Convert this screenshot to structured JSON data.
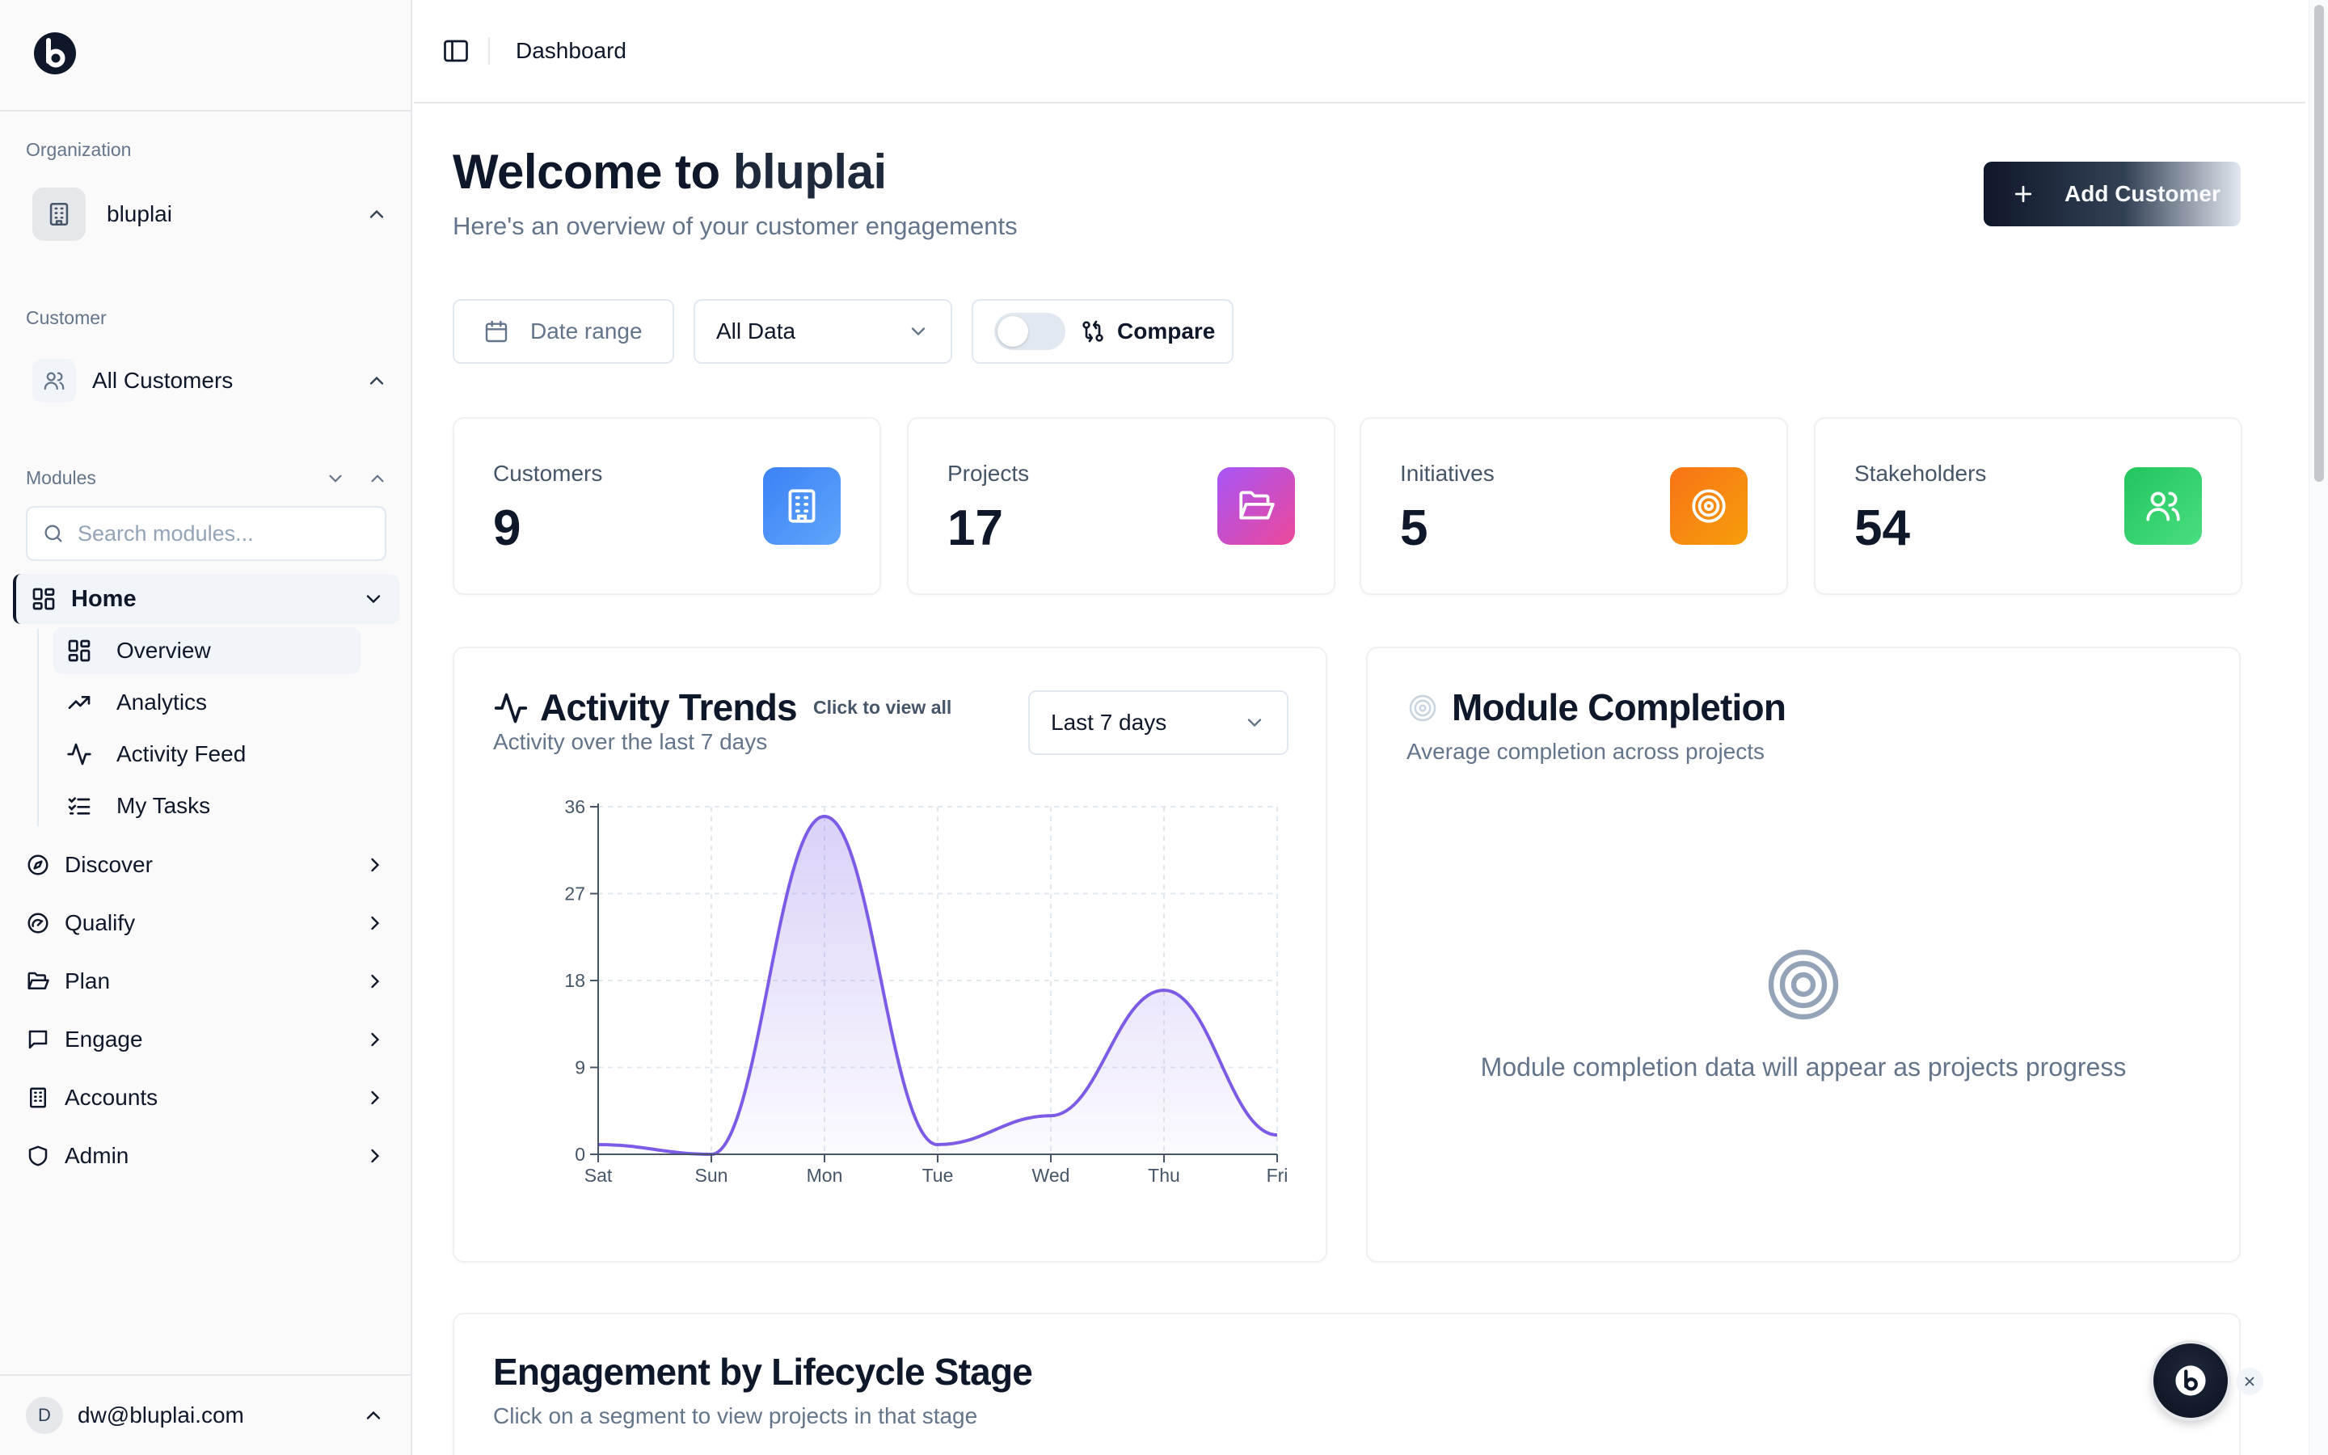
{
  "sidebar": {
    "organization_label": "Organization",
    "organization_name": "bluplai",
    "customer_label": "Customer",
    "customer_name": "All Customers",
    "modules_label": "Modules",
    "search_placeholder": "Search modules...",
    "home_label": "Home",
    "home_subitems": [
      {
        "label": "Overview",
        "icon": "grid-icon",
        "active": true
      },
      {
        "label": "Analytics",
        "icon": "trending-up-icon"
      },
      {
        "label": "Activity Feed",
        "icon": "activity-icon"
      },
      {
        "label": "My Tasks",
        "icon": "list-checks-icon"
      }
    ],
    "nav_items": [
      {
        "label": "Discover",
        "icon": "compass-icon"
      },
      {
        "label": "Qualify",
        "icon": "gauge-icon"
      },
      {
        "label": "Plan",
        "icon": "folder-open-icon"
      },
      {
        "label": "Engage",
        "icon": "message-square-icon"
      },
      {
        "label": "Accounts",
        "icon": "building-icon"
      },
      {
        "label": "Admin",
        "icon": "shield-icon"
      }
    ],
    "user": {
      "initial": "D",
      "email": "dw@bluplai.com"
    }
  },
  "topbar": {
    "breadcrumb": "Dashboard"
  },
  "header": {
    "welcome_prefix": "Welcome to ",
    "brand": "bluplai",
    "subtitle": "Here's an overview of your customer engagements",
    "add_button": "Add Customer"
  },
  "filters": {
    "date_range": "Date range",
    "data_select": "All Data",
    "compare_label": "Compare",
    "compare_on": false
  },
  "stats": [
    {
      "label": "Customers",
      "value": "9",
      "icon": "building-icon",
      "color": "#3b82f6"
    },
    {
      "label": "Projects",
      "value": "17",
      "icon": "folder-open-icon",
      "color": "#a855f7"
    },
    {
      "label": "Initiatives",
      "value": "5",
      "icon": "target-icon",
      "color": "#f97316"
    },
    {
      "label": "Stakeholders",
      "value": "54",
      "icon": "users-icon",
      "color": "#22c55e"
    }
  ],
  "activity": {
    "title": "Activity Trends",
    "link": "Click to view all",
    "subtitle": "Activity over the last 7 days",
    "period": "Last 7 days"
  },
  "chart_data": {
    "type": "area",
    "categories": [
      "Sat",
      "Sun",
      "Mon",
      "Tue",
      "Wed",
      "Thu",
      "Fri"
    ],
    "values": [
      1,
      0,
      35,
      1,
      4,
      17,
      2
    ],
    "ylim": [
      0,
      36
    ],
    "yticks": [
      0,
      9,
      18,
      27,
      36
    ],
    "grid": true,
    "color": "#7c5ce6",
    "title": "",
    "xlabel": "",
    "ylabel": ""
  },
  "module_completion": {
    "title": "Module Completion",
    "subtitle": "Average completion across projects",
    "empty_message": "Module completion data will appear as projects progress"
  },
  "engagement": {
    "title": "Engagement by Lifecycle Stage",
    "subtitle": "Click on a segment to view projects in that stage"
  }
}
